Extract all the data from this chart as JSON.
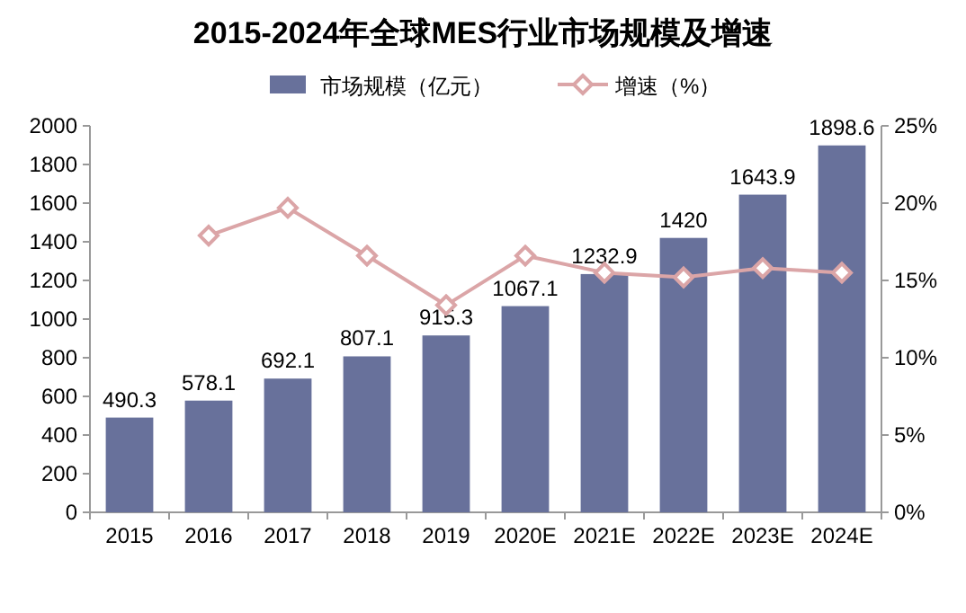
{
  "chart_data": {
    "type": "bar",
    "title": "2015-2024年全球MES行业市场规模及增速",
    "categories": [
      "2015",
      "2016",
      "2017",
      "2018",
      "2019",
      "2020E",
      "2021E",
      "2022E",
      "2023E",
      "2024E"
    ],
    "series": [
      {
        "name": "市场规模（亿元）",
        "color": "#68719b",
        "values": [
          490.3,
          578.1,
          692.1,
          807.1,
          915.3,
          1067.1,
          1232.9,
          1420,
          1643.9,
          1898.6
        ],
        "value_labels": [
          "490.3",
          "578.1",
          "692.1",
          "807.1",
          "915.3",
          "1067.1",
          "1232.9",
          "1420",
          "1643.9",
          "1898.6"
        ]
      },
      {
        "name": "增速（%）",
        "type": "line",
        "axis": "y2",
        "color": "#dba5a7",
        "marker": "diamond",
        "values": [
          null,
          17.9,
          19.7,
          16.6,
          13.4,
          16.6,
          15.5,
          15.2,
          15.8,
          15.5
        ]
      }
    ],
    "ylim": [
      0,
      2000
    ],
    "yticks": [
      0,
      200,
      400,
      600,
      800,
      1000,
      1200,
      1400,
      1600,
      1800,
      2000
    ],
    "y2lim": [
      0,
      25
    ],
    "y2ticks": [
      {
        "value": 0,
        "label": "0%"
      },
      {
        "value": 5,
        "label": "5%"
      },
      {
        "value": 10,
        "label": "10%"
      },
      {
        "value": 15,
        "label": "15%"
      },
      {
        "value": 20,
        "label": "20%"
      },
      {
        "value": 25,
        "label": "25%"
      }
    ],
    "legend": "top",
    "grid": false
  }
}
